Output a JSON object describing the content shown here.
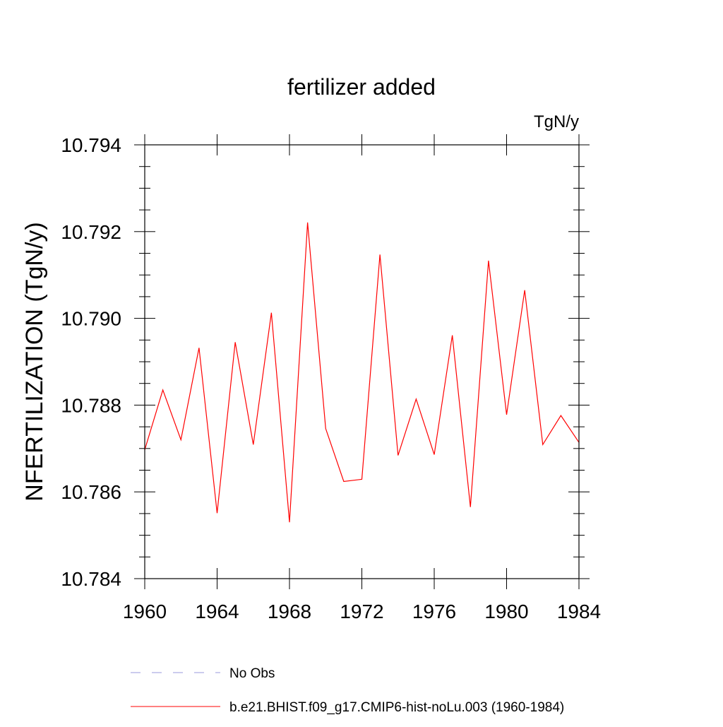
{
  "chart_data": {
    "type": "line",
    "title": "fertilizer added",
    "units_label": "TgN/y",
    "ylabel": "NFERTILIZATION  (TgN/y)",
    "xlabel": "",
    "xlim": [
      1960,
      1984
    ],
    "ylim": [
      10.784,
      10.794
    ],
    "x_ticks": [
      1960,
      1964,
      1968,
      1972,
      1976,
      1980,
      1984
    ],
    "x_tick_labels": [
      "1960",
      "1964",
      "1968",
      "1972",
      "1976",
      "1980",
      "1984"
    ],
    "y_ticks": [
      10.784,
      10.786,
      10.788,
      10.79,
      10.792,
      10.794
    ],
    "y_tick_labels": [
      "10.784",
      "10.786",
      "10.788",
      "10.790",
      "10.792",
      "10.794"
    ],
    "grid": false,
    "legend_position": "bottom",
    "series": [
      {
        "name": "b.e21.BHIST.f09_g17.CMIP6-hist-noLu.003 (1960-1984)",
        "color": "#ff0000",
        "line_style": "solid",
        "x": [
          1960,
          1961,
          1962,
          1963,
          1964,
          1965,
          1966,
          1967,
          1968,
          1969,
          1970,
          1971,
          1972,
          1973,
          1974,
          1975,
          1976,
          1977,
          1978,
          1979,
          1980,
          1981,
          1982,
          1983,
          1984
        ],
        "values": [
          10.78697,
          10.78835,
          10.7872,
          10.78932,
          10.78551,
          10.78945,
          10.78709,
          10.79013,
          10.7853,
          10.79221,
          10.78746,
          10.78624,
          10.78629,
          10.79147,
          10.78684,
          10.78814,
          10.78686,
          10.78961,
          10.78565,
          10.79133,
          10.78778,
          10.79065,
          10.78709,
          10.78776,
          10.78714
        ]
      }
    ],
    "legend": [
      {
        "label": "No Obs",
        "color": "#9999dd",
        "line_style": "dashed"
      },
      {
        "label": "b.e21.BHIST.f09_g17.CMIP6-hist-noLu.003 (1960-1984)",
        "color": "#ff0000",
        "line_style": "solid"
      }
    ]
  }
}
